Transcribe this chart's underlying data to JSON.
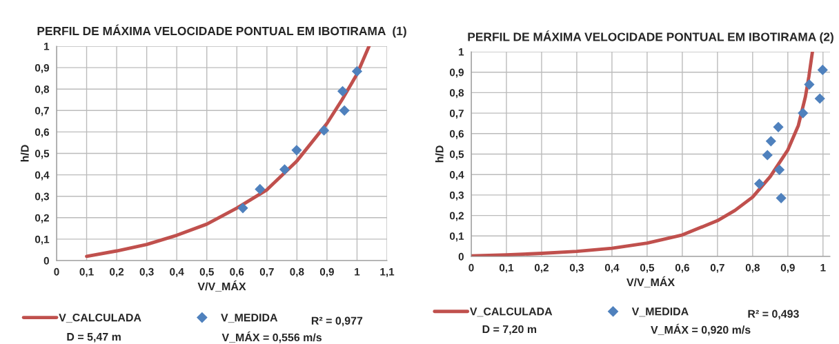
{
  "chart_data": [
    {
      "type": "scatter",
      "title": "PERFIL DE MÁXIMA VELOCIDADE PONTUAL EM IBOTIRAMA  (1)",
      "xlabel": "V/V_MÁX",
      "ylabel": "h/D",
      "series": [
        {
          "name": "V_CALCULADA",
          "type": "line",
          "color": "#c0504d",
          "marker": "none",
          "x": [
            0.1,
            0.2,
            0.3,
            0.4,
            0.5,
            0.6,
            0.7,
            0.8,
            0.9,
            0.95,
            1.0,
            1.04
          ],
          "values": [
            0.02,
            0.045,
            0.075,
            0.118,
            0.17,
            0.245,
            0.33,
            0.465,
            0.64,
            0.75,
            0.87,
            1.0
          ]
        },
        {
          "name": "V_MEDIDA",
          "color": "#4f81bd",
          "marker": "diamond",
          "x": [
            0.62,
            0.677,
            0.759,
            0.799,
            0.89,
            0.952,
            0.958,
            1.0
          ],
          "values": [
            0.245,
            0.333,
            0.425,
            0.515,
            0.607,
            0.79,
            0.7,
            0.883
          ]
        }
      ],
      "xlim": [
        0,
        1.1
      ],
      "ylim": [
        0,
        1
      ],
      "xticks": [
        0,
        {
          "value": 0.1,
          "label": "0,1"
        },
        {
          "value": 0.2,
          "label": "0,2"
        },
        {
          "value": 0.3,
          "label": "0,3"
        },
        {
          "value": 0.4,
          "label": "0,4"
        },
        {
          "value": 0.5,
          "label": "0,5"
        },
        {
          "value": 0.6,
          "label": "0,6"
        },
        {
          "value": 0.7,
          "label": "0,7"
        },
        {
          "value": 0.8,
          "label": "0,8"
        },
        {
          "value": 0.9,
          "label": "0,9"
        },
        1,
        {
          "value": 1.1,
          "label": "1,1"
        }
      ],
      "yticks": [
        0,
        {
          "value": 0.1,
          "label": "0,1"
        },
        {
          "value": 0.2,
          "label": "0,2"
        },
        {
          "value": 0.3,
          "label": "0,3"
        },
        {
          "value": 0.4,
          "label": "0,4"
        },
        {
          "value": 0.5,
          "label": "0,5"
        },
        {
          "value": 0.6,
          "label": "0,6"
        },
        {
          "value": 0.7,
          "label": "0,7"
        },
        {
          "value": 0.8,
          "label": "0,8"
        },
        {
          "value": 0.9,
          "label": "0,9"
        },
        1
      ],
      "grid": true,
      "legend": "bottom",
      "annotations": [
        "R² = 0,977",
        "D = 5,47 m",
        "V_MÁX = 0,556 m/s"
      ]
    },
    {
      "type": "scatter",
      "title": "PERFIL DE MÁXIMA VELOCIDADE PONTUAL EM IBOTIRAMA (2)",
      "xlabel": "V/V_MÁX",
      "ylabel": "h/D",
      "series": [
        {
          "name": "V_CALCULADA",
          "type": "line",
          "color": "#c0504d",
          "marker": "none",
          "x": [
            0,
            0.1,
            0.2,
            0.3,
            0.4,
            0.5,
            0.6,
            0.7,
            0.75,
            0.8,
            0.85,
            0.9,
            0.93,
            0.95,
            0.96,
            0.97
          ],
          "values": [
            0.003,
            0.008,
            0.015,
            0.025,
            0.04,
            0.065,
            0.105,
            0.175,
            0.225,
            0.29,
            0.39,
            0.52,
            0.64,
            0.78,
            0.88,
            1.0
          ]
        },
        {
          "name": "V_MEDIDA",
          "color": "#4f81bd",
          "marker": "diamond",
          "x": [
            0.819,
            0.842,
            0.852,
            0.873,
            0.876,
            0.881,
            0.943,
            0.961,
            0.991,
            0.999
          ],
          "values": [
            0.355,
            0.495,
            0.563,
            0.632,
            0.423,
            0.285,
            0.7,
            0.84,
            0.771,
            0.911
          ]
        }
      ],
      "xlim": [
        0,
        1.02
      ],
      "ylim": [
        0,
        1
      ],
      "xticks": [
        0,
        {
          "value": 0.1,
          "label": "0,1"
        },
        {
          "value": 0.2,
          "label": "0,2"
        },
        {
          "value": 0.3,
          "label": "0,3"
        },
        {
          "value": 0.4,
          "label": "0,4"
        },
        {
          "value": 0.5,
          "label": "0,5"
        },
        {
          "value": 0.6,
          "label": "0,6"
        },
        {
          "value": 0.7,
          "label": "0,7"
        },
        {
          "value": 0.8,
          "label": "0,8"
        },
        {
          "value": 0.9,
          "label": "0,9"
        },
        1
      ],
      "yticks": [
        0,
        {
          "value": 0.1,
          "label": "0,1"
        },
        {
          "value": 0.2,
          "label": "0,2"
        },
        {
          "value": 0.3,
          "label": "0,3"
        },
        {
          "value": 0.4,
          "label": "0,4"
        },
        {
          "value": 0.5,
          "label": "0,5"
        },
        {
          "value": 0.6,
          "label": "0,6"
        },
        {
          "value": 0.7,
          "label": "0,7"
        },
        {
          "value": 0.8,
          "label": "0,8"
        },
        {
          "value": 0.9,
          "label": "0,9"
        },
        1
      ],
      "grid": true,
      "legend": "bottom",
      "annotations": [
        "R² = 0,493",
        "D = 7,20 m",
        "V_MÁX = 0,920 m/s"
      ]
    }
  ]
}
